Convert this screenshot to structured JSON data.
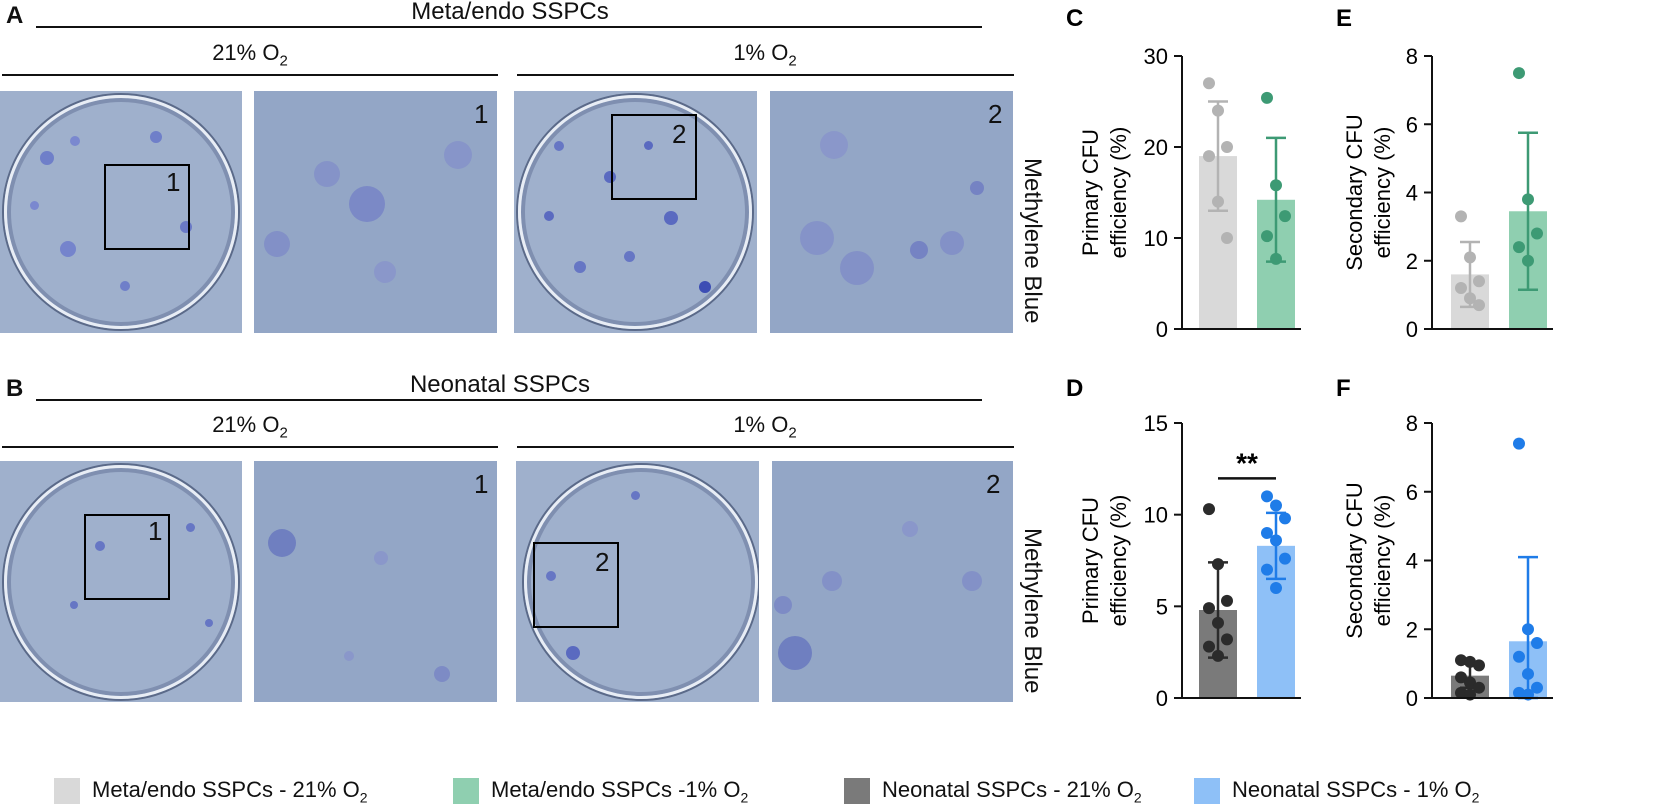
{
  "figure": {
    "panel_A": {
      "letter": "A",
      "title": "Meta/endo SSPCs",
      "cond_left": "21% O",
      "cond_left_sub": "2",
      "cond_right": "1% O",
      "cond_right_sub": "2",
      "inset_1": "1",
      "inset_2": "2",
      "zoom_1": "1",
      "zoom_2": "2",
      "stain": "Methylene Blue"
    },
    "panel_B": {
      "letter": "B",
      "title": "Neonatal SSPCs",
      "cond_left": "21% O",
      "cond_left_sub": "2",
      "cond_right": "1% O",
      "cond_right_sub": "2",
      "inset_1": "1",
      "inset_2": "2",
      "zoom_1": "1",
      "zoom_2": "2",
      "stain": "Methylene Blue"
    }
  },
  "legend": [
    {
      "text": "Meta/endo SSPCs - 21% O",
      "sub": "2",
      "color": "#d9d9d9"
    },
    {
      "text": "Meta/endo SSPCs -1% O",
      "sub": "2",
      "color": "#8fcfb0"
    },
    {
      "text": "Neonatal SSPCs - 21% O",
      "sub": "2",
      "color": "#7a7a7a"
    },
    {
      "text": "Neonatal SSPCs - 1% O",
      "sub": "2",
      "color": "#8ec0f7"
    }
  ],
  "chart_data": [
    {
      "panel": "C",
      "type": "bar",
      "ylabel_line1": "Primary  CFU",
      "ylabel_line2": "efficiency (%)",
      "ylim": [
        0,
        30
      ],
      "yticks": [
        0,
        10,
        20,
        30
      ],
      "series": [
        {
          "name": "Meta/endo SSPCs - 21% O2",
          "mean": 19,
          "sd": 6,
          "bar_color": "#d9d9d9",
          "dot_color": "#b3b3b3",
          "points": [
            27,
            24,
            20,
            19,
            14,
            10
          ]
        },
        {
          "name": "Meta/endo SSPCs -1% O2",
          "mean": 14.2,
          "sd": 6.8,
          "bar_color": "#8fcfb0",
          "dot_color": "#3d9a74",
          "points": [
            25.4,
            15.8,
            12.4,
            10.2,
            7.7
          ]
        }
      ]
    },
    {
      "panel": "E",
      "type": "bar",
      "ylabel_line1": "Secondary CFU",
      "ylabel_line2": "efficiency (%)",
      "ylim": [
        0,
        8
      ],
      "yticks": [
        0,
        2,
        4,
        6,
        8
      ],
      "series": [
        {
          "name": "Meta/endo SSPCs - 21% O2",
          "mean": 1.6,
          "sd": 0.95,
          "bar_color": "#d9d9d9",
          "dot_color": "#b3b3b3",
          "points": [
            3.3,
            2.1,
            1.4,
            1.2,
            0.9,
            0.7
          ]
        },
        {
          "name": "Meta/endo SSPCs -1% O2",
          "mean": 3.45,
          "sd": 2.3,
          "bar_color": "#8fcfb0",
          "dot_color": "#3d9a74",
          "points": [
            7.5,
            3.8,
            2.8,
            2.4,
            2.0
          ]
        }
      ]
    },
    {
      "panel": "D",
      "type": "bar",
      "ylabel_line1": "Primary  CFU",
      "ylabel_line2": "efficiency (%)",
      "ylim": [
        0,
        15
      ],
      "yticks": [
        0,
        5,
        10,
        15
      ],
      "significance": "**",
      "series": [
        {
          "name": "Neonatal SSPCs - 21% O2",
          "mean": 4.8,
          "sd": 2.6,
          "bar_color": "#7a7a7a",
          "dot_color": "#2b2b2b",
          "points": [
            10.3,
            7.3,
            5.3,
            4.9,
            4.1,
            3.2,
            2.8,
            2.3
          ]
        },
        {
          "name": "Neonatal SSPCs - 1% O2",
          "mean": 8.3,
          "sd": 1.8,
          "bar_color": "#8ec0f7",
          "dot_color": "#1f7ce8",
          "points": [
            11.0,
            10.5,
            9.8,
            9.0,
            8.6,
            7.6,
            7.0,
            6.0
          ]
        }
      ]
    },
    {
      "panel": "F",
      "type": "bar",
      "ylabel_line1": "Secondary CFU",
      "ylabel_line2": "efficiency (%)",
      "ylim": [
        0,
        8
      ],
      "yticks": [
        0,
        2,
        4,
        6,
        8
      ],
      "series": [
        {
          "name": "Neonatal SSPCs - 21% O2",
          "mean": 0.65,
          "sd": 0.35,
          "bar_color": "#7a7a7a",
          "dot_color": "#2b2b2b",
          "points": [
            1.1,
            1.05,
            0.95,
            0.6,
            0.45,
            0.3,
            0.15,
            0.1
          ]
        },
        {
          "name": "Neonatal SSPCs - 1% O2",
          "mean": 1.65,
          "sd": 2.45,
          "bar_color": "#8ec0f7",
          "dot_color": "#1f7ce8",
          "points": [
            7.4,
            2.0,
            1.6,
            1.2,
            0.7,
            0.3,
            0.15,
            0.1
          ]
        }
      ]
    }
  ]
}
